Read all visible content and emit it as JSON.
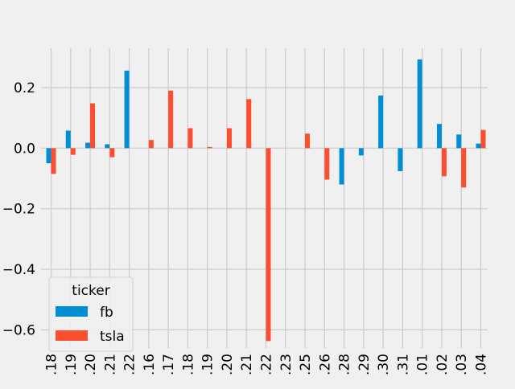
{
  "chart_data": {
    "type": "bar",
    "categories": [
      ".18",
      ".19",
      ".20",
      ".21",
      ".22",
      ".16",
      ".17",
      ".18",
      ".19",
      ".20",
      ".21",
      ".22",
      ".23",
      ".25",
      ".26",
      ".28",
      ".29",
      ".30",
      ".31",
      ".01",
      ".02",
      ".03",
      ".04"
    ],
    "series": [
      {
        "name": "fb",
        "color": "#008fd5",
        "values": [
          -0.05,
          0.058,
          0.018,
          0.013,
          0.256,
          0,
          0,
          0,
          0,
          0,
          0,
          0,
          0,
          0,
          0,
          -0.12,
          -0.024,
          0.174,
          -0.076,
          0.293,
          0.08,
          0.045,
          0.015
        ]
      },
      {
        "name": "tsla",
        "color": "#fc4f30",
        "values": [
          -0.085,
          -0.022,
          0.148,
          -0.03,
          0,
          0.027,
          0.19,
          0.066,
          0.004,
          0.066,
          0.162,
          -0.637,
          0,
          0.048,
          -0.104,
          0,
          0,
          0,
          0,
          0,
          -0.093,
          -0.13,
          0.06
        ]
      }
    ],
    "yticks": [
      "−0.6",
      "−0.4",
      "−0.2",
      "0.0",
      "0.2"
    ],
    "ytick_values": [
      -0.6,
      -0.4,
      -0.2,
      0.0,
      0.2
    ],
    "ylim": [
      -0.66,
      0.33
    ],
    "grid": true,
    "legend": {
      "title": "ticker",
      "placement": "lower-left"
    }
  }
}
